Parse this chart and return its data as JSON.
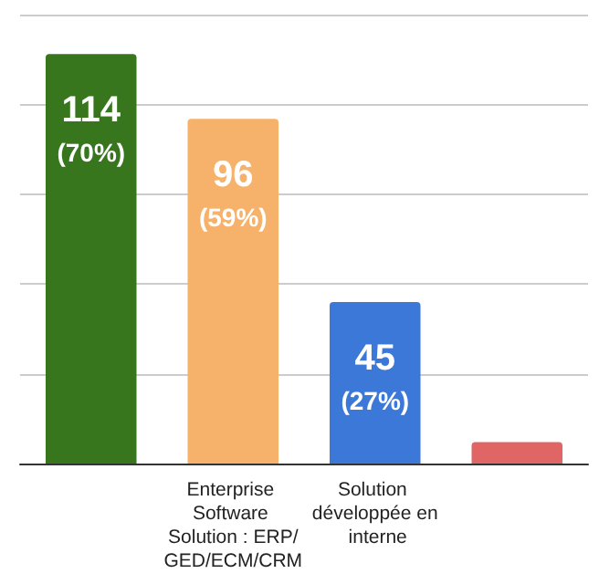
{
  "chart_data": {
    "type": "bar",
    "categories": [
      null,
      "Enterprise Software Solution : ERP/GED/ECM/CRM",
      "Solution développée en interne",
      null
    ],
    "values": [
      114,
      96,
      45,
      6
    ],
    "colors": [
      "#38761d",
      "#f6b26b",
      "#3c78d8",
      "#e06666"
    ],
    "value_labels": [
      "114\n(70%)",
      "96\n(59%)",
      "45\n(27%)",
      null
    ],
    "ylim": [
      0,
      125
    ],
    "yticks": [
      {
        "value": 0,
        "label": null
      },
      {
        "value": 25,
        "label": null
      },
      {
        "value": 50,
        "label": null
      },
      {
        "value": 75,
        "label": null
      },
      {
        "value": 100,
        "label": null
      },
      {
        "value": 125,
        "label": null
      }
    ],
    "grid": true
  }
}
